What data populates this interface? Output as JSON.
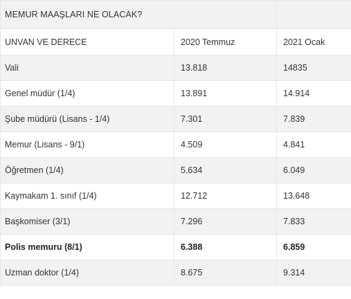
{
  "table": {
    "title": "MEMUR MAAŞLARI NE OLACAK?",
    "headers": [
      "UNVAN VE DERECE",
      "2020 Temmuz",
      "2021 Ocak"
    ],
    "rows": [
      [
        "Vali",
        "13.818",
        "14835"
      ],
      [
        "Genel müdür (1/4)",
        "13.891",
        "14.914"
      ],
      [
        "Şube müdürü (Lisans - 1/4)",
        "7.301",
        "7.839"
      ],
      [
        "Memur (Lisans - 9/1)",
        "4.509",
        "4.841"
      ],
      [
        "Öğretmen (1/4)",
        "5.634",
        "6.049"
      ],
      [
        "Kaymakam 1. sınıf (1/4)",
        "12.712",
        "13.648"
      ],
      [
        "Başkomiser (3/1)",
        "7.296",
        "7.833"
      ],
      [
        "Polis memuru (8/1)",
        "6.388",
        "6.859"
      ],
      [
        "Uzman doktor (1/4)",
        "8.675",
        "9.314"
      ]
    ]
  }
}
